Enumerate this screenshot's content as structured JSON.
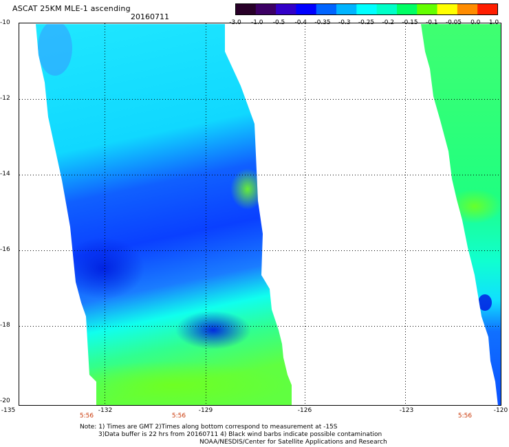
{
  "header": {
    "title": "ASCAT 25KM MLE-1 ascending",
    "date": "20160711"
  },
  "colorbar": {
    "labels": [
      "-3.0",
      "-1.0",
      "-0.5",
      "-0.4",
      "-0.35",
      "-0.3",
      "-0.25",
      "-0.2",
      "-0.15",
      "-0.1",
      "-0.05",
      "0.0",
      "1.0"
    ],
    "colors": [
      "#280028",
      "#3c0064",
      "#3200c8",
      "#0000ff",
      "#0064ff",
      "#00b4ff",
      "#00ffff",
      "#00ffc8",
      "#00ff64",
      "#64ff00",
      "#ffff00",
      "#ff8c00",
      "#ff1e00"
    ]
  },
  "axes": {
    "lat_labels": [
      "-10",
      "-12",
      "-14",
      "-16",
      "-18",
      "-20"
    ],
    "lon_labels": [
      "-135",
      "-132",
      "-129",
      "-126",
      "-123",
      "-120"
    ],
    "time_labels": [
      "5:56",
      "5:56",
      "5:56"
    ]
  },
  "notes": {
    "line1": "Note: 1) Times are GMT 2)Times along bottom correspond to measurement at -15S",
    "line2": "3)Data buffer is 22 hrs from 20160711 4) Black wind barbs indicate possible contamination",
    "line3": "NOAA/NESDIS/Center for Satellite Applications and Research"
  }
}
